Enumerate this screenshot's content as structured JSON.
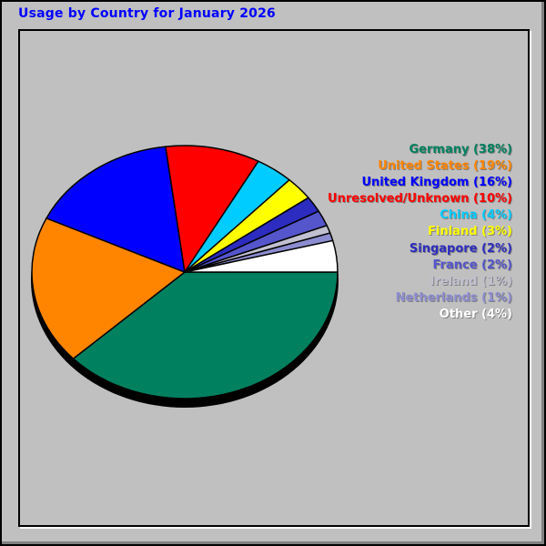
{
  "title": "Usage by Country for January 2026",
  "colors": {
    "background": "#C0C0C0",
    "bevel_shadow": "#808080",
    "panel_border": "#000000",
    "panel_highlight": "#FFFFFF",
    "title_text": "#0000FF",
    "legend_text_shadow": "#808080",
    "pie_outline": "#000000",
    "pie_base_shadow": "#000000"
  },
  "legend_format": "{label} ({value}%)",
  "chart_data": {
    "type": "pie",
    "title": "Usage by Country for January 2026",
    "unit": "percent",
    "legend_position": "right",
    "start_angle_deg": 0,
    "direction": "clockwise",
    "style": "3d-ellipse-with-drop-shadow",
    "slices": [
      {
        "label": "Germany",
        "value": 38,
        "color": "#00805F"
      },
      {
        "label": "United States",
        "value": 19,
        "color": "#FF8500"
      },
      {
        "label": "United Kingdom",
        "value": 16,
        "color": "#0000FF"
      },
      {
        "label": "Unresolved/Unknown",
        "value": 10,
        "color": "#FF0000"
      },
      {
        "label": "China",
        "value": 4,
        "color": "#00CCFF"
      },
      {
        "label": "Finland",
        "value": 3,
        "color": "#FFFF00"
      },
      {
        "label": "Singapore",
        "value": 2,
        "color": "#2C2CC0"
      },
      {
        "label": "France",
        "value": 2,
        "color": "#5555CC"
      },
      {
        "label": "Ireland",
        "value": 1,
        "color": "#C0C0D0"
      },
      {
        "label": "Netherlands",
        "value": 1,
        "color": "#8C8CD0"
      },
      {
        "label": "Other",
        "value": 4,
        "color": "#FFFFFF"
      }
    ]
  }
}
